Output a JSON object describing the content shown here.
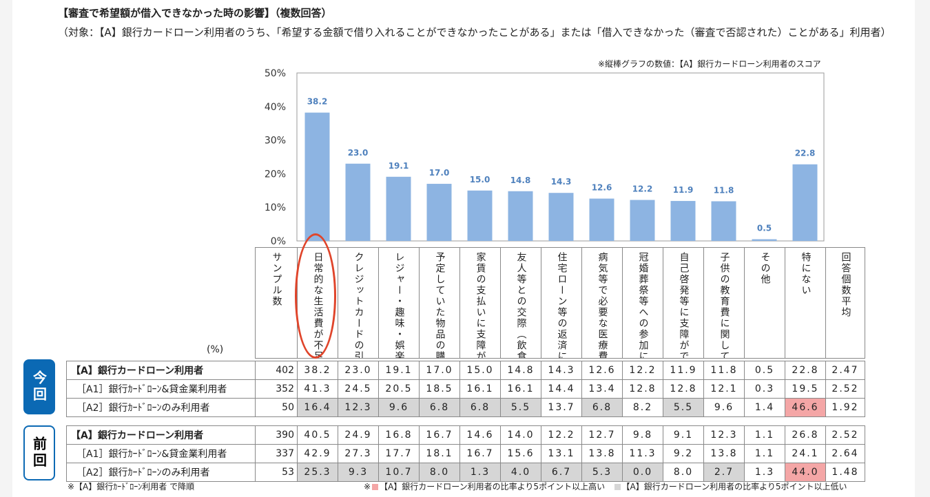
{
  "title": "【審査で希望額が借入できなかった時の影響】（複数回答）",
  "subtitle": "（対象：【A】銀行カードローン利用者のうち、「希望する金額で借り入れることができなかったことがある」または「借入できなかった（審査で否認された）ことがある」利用者）",
  "note": "※縦棒グラフの数値：【A】銀行カードローン利用者のスコア",
  "percent_label": "(%)",
  "sample_header": "サンプル数",
  "avg_header": "回答個数平均",
  "badges": {
    "current": "今回",
    "previous": "前回"
  },
  "footnotes": {
    "sort": "※【A】銀行ｶｰﾄﾞﾛｰﾝ利用者 で降順",
    "high_prefix": "※",
    "high": "【A】銀行カードローン利用者の比率より5ポイント以上高い",
    "low": "【A】銀行カードローン利用者の比率より5ポイント以上低い"
  },
  "colors": {
    "bar": "#8db4e2",
    "value_label": "#4f81bd",
    "high": "#f4a6a6",
    "low": "#d6d6d6",
    "badge": "#0b69b4",
    "circle": "#e0452b"
  },
  "chart_data": {
    "type": "bar",
    "categories": [
      "日常的な生活費が不足した",
      "クレジットカードの引落しに支障がでた",
      "レジャー・趣味・娯楽に支障がでた",
      "予定していた物品の購入に支障がでた",
      "家賃の支払いに支障がでた",
      "友人等との交際（飲食など）に支障がでた",
      "住宅ローン等の返済に支障がでた",
      "病気等で必要な医療費に支障がでた",
      "冠婚葬祭等への参加に支障がでた",
      "自己啓発等に支障がでた",
      "子供の教育費に関して支障がでた",
      "その他",
      "特にない"
    ],
    "values": [
      38.2,
      23.0,
      19.1,
      17.0,
      15.0,
      14.8,
      14.3,
      12.6,
      12.2,
      11.9,
      11.8,
      0.5,
      22.8
    ],
    "value_labels": [
      "38.2",
      "23.0",
      "19.1",
      "17.0",
      "15.0",
      "14.8",
      "14.3",
      "12.6",
      "12.2",
      "11.9",
      "11.8",
      "0.5",
      "22.8"
    ],
    "ylim": [
      0,
      50
    ],
    "yticks": [
      0,
      10,
      20,
      30,
      40,
      50
    ],
    "ytick_labels": [
      "0%",
      "10%",
      "20%",
      "30%",
      "40%",
      "50%"
    ],
    "grid": false
  },
  "tables": {
    "current": [
      {
        "label": "【A】銀行カードローン利用者",
        "n": "402",
        "values": [
          "38.2",
          "23.0",
          "19.1",
          "17.0",
          "15.0",
          "14.8",
          "14.3",
          "12.6",
          "12.2",
          "11.9",
          "11.8",
          "0.5",
          "22.8"
        ],
        "avg": "2.47",
        "flags": [
          "",
          "",
          "",
          "",
          "",
          "",
          "",
          "",
          "",
          "",
          "",
          "",
          ""
        ]
      },
      {
        "label": "［A1］銀行ｶｰﾄﾞﾛｰﾝ&貸金業利用者",
        "n": "352",
        "values": [
          "41.3",
          "24.5",
          "20.5",
          "18.5",
          "16.1",
          "16.1",
          "14.4",
          "13.4",
          "12.8",
          "12.8",
          "12.1",
          "0.3",
          "19.5"
        ],
        "avg": "2.52",
        "flags": [
          "",
          "",
          "",
          "",
          "",
          "",
          "",
          "",
          "",
          "",
          "",
          "",
          ""
        ]
      },
      {
        "label": "［A2］銀行ｶｰﾄﾞﾛｰﾝのみ利用者",
        "n": "50",
        "values": [
          "16.4",
          "12.3",
          "9.6",
          "6.8",
          "6.8",
          "5.5",
          "13.7",
          "6.8",
          "8.2",
          "5.5",
          "9.6",
          "1.4",
          "46.6"
        ],
        "avg": "1.92",
        "flags": [
          "lo",
          "lo",
          "lo",
          "lo",
          "lo",
          "lo",
          "",
          "lo",
          "",
          "lo",
          "",
          "",
          "hi"
        ]
      }
    ],
    "previous": [
      {
        "label": "【A】銀行カードローン利用者",
        "n": "390",
        "values": [
          "40.5",
          "24.9",
          "16.8",
          "16.7",
          "14.6",
          "14.0",
          "12.2",
          "12.7",
          "9.8",
          "9.1",
          "12.3",
          "1.1",
          "26.8"
        ],
        "avg": "2.52",
        "flags": [
          "",
          "",
          "",
          "",
          "",
          "",
          "",
          "",
          "",
          "",
          "",
          "",
          ""
        ]
      },
      {
        "label": "［A1］銀行ｶｰﾄﾞﾛｰﾝ&貸金業利用者",
        "n": "337",
        "values": [
          "42.9",
          "27.3",
          "17.7",
          "18.1",
          "16.7",
          "15.6",
          "13.1",
          "13.8",
          "11.3",
          "9.2",
          "13.8",
          "1.1",
          "24.1"
        ],
        "avg": "2.64",
        "flags": [
          "",
          "",
          "",
          "",
          "",
          "",
          "",
          "",
          "",
          "",
          "",
          "",
          ""
        ]
      },
      {
        "label": "［A2］銀行ｶｰﾄﾞﾛｰﾝのみ利用者",
        "n": "53",
        "values": [
          "25.3",
          "9.3",
          "10.7",
          "8.0",
          "1.3",
          "4.0",
          "6.7",
          "5.3",
          "0.0",
          "8.0",
          "2.7",
          "1.3",
          "44.0"
        ],
        "avg": "1.48",
        "flags": [
          "lo",
          "lo",
          "lo",
          "lo",
          "lo",
          "lo",
          "lo",
          "lo",
          "lo",
          "",
          "lo",
          "",
          "hi"
        ]
      }
    ]
  }
}
